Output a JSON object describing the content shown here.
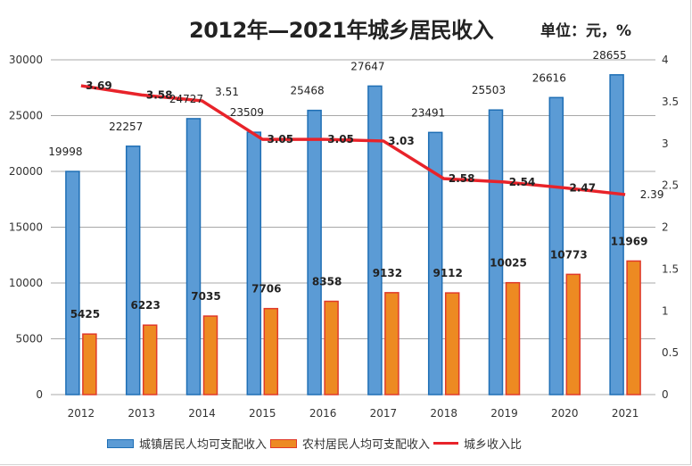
{
  "title": "2012年—2021年城乡居民收入",
  "unit": "单位：元，%",
  "colors": {
    "urban_fill": "#5B9BD5",
    "urban_border": "#1F6FB5",
    "rural_fill": "#ED8A22",
    "rural_border": "#E03A2A",
    "ratio_line": "#E8232A"
  },
  "legend": [
    {
      "label": "城镇居民人均可支配收入",
      "kind": "bar",
      "series": "urban"
    },
    {
      "label": "农村居民人均可支配收入",
      "kind": "bar",
      "series": "rural"
    },
    {
      "label": "城乡收入比",
      "kind": "line",
      "series": "ratio"
    }
  ],
  "chart_data": {
    "type": "bar",
    "title": "2012年—2021年城乡居民收入",
    "subtitle": "单位：元，%",
    "categories": [
      "2012",
      "2013",
      "2014",
      "2015",
      "2016",
      "2017",
      "2018",
      "2019",
      "2020",
      "2021"
    ],
    "series": [
      {
        "name": "城镇居民人均可支配收入",
        "type": "bar",
        "axis": "left",
        "values": [
          19998,
          22257,
          24727,
          23509,
          25468,
          27647,
          23491,
          25503,
          26616,
          28655
        ]
      },
      {
        "name": "农村居民人均可支配收入",
        "type": "bar",
        "axis": "left",
        "values": [
          5425,
          6223,
          7035,
          7706,
          8358,
          9132,
          9112,
          10025,
          10773,
          11969
        ]
      },
      {
        "name": "城乡收入比",
        "type": "line",
        "axis": "right",
        "values": [
          3.69,
          3.58,
          3.51,
          3.05,
          3.05,
          3.03,
          2.58,
          2.54,
          2.47,
          2.39
        ]
      }
    ],
    "ylim": [
      0,
      30000
    ],
    "yticks": [
      "0",
      "5000",
      "10000",
      "15000",
      "20000",
      "25000",
      "30000"
    ],
    "ylim_right": [
      0,
      4
    ],
    "yticks_right": [
      "0",
      "0.5",
      "1",
      "1.5",
      "2",
      "2.5",
      "3",
      "3.5",
      "4"
    ],
    "xlabel": "",
    "ylabel": "",
    "grid": true,
    "legend_position": "bottom"
  }
}
